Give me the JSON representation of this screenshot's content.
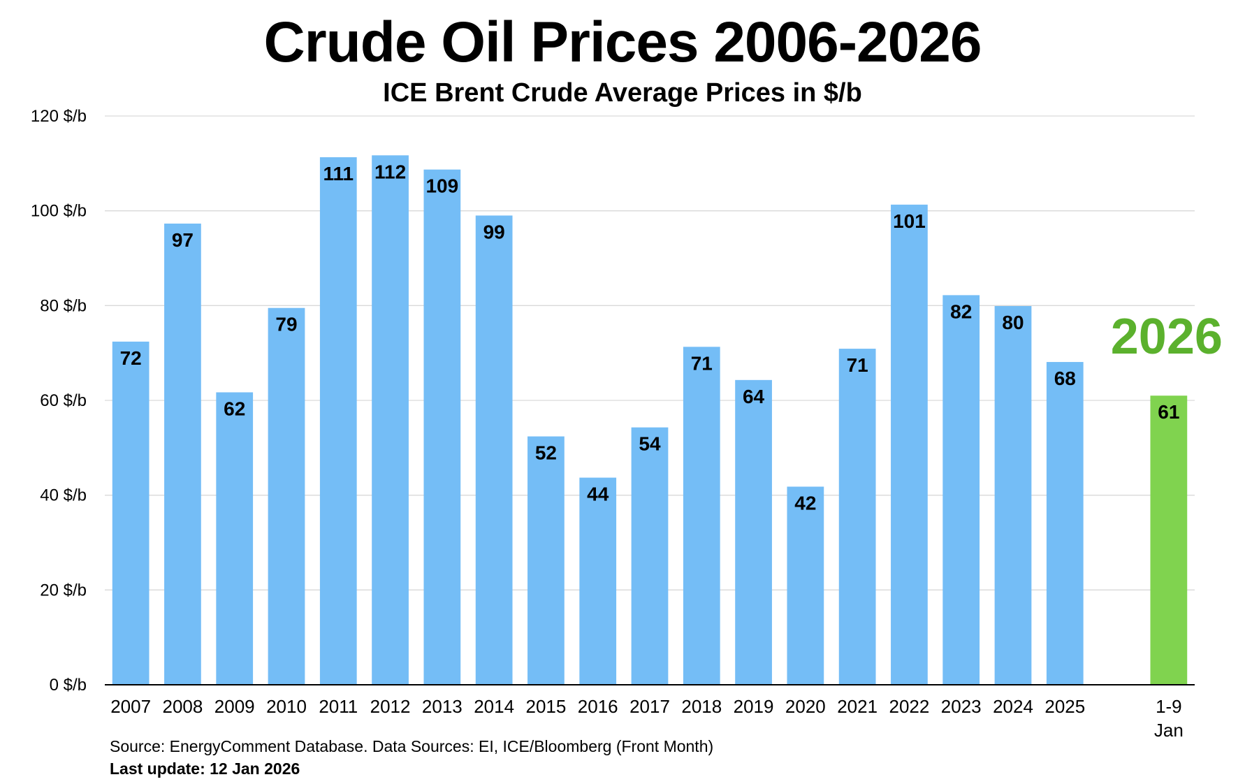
{
  "colors": {
    "bar": "#74BDF6",
    "highlight_bar": "#80D34F",
    "highlight_text": "#5BB12D",
    "grid": "#d9d9d9",
    "axis": "#000000"
  },
  "footer": {
    "source": "Source: EnergyComment Database. Data Sources: EI, ICE/Bloomberg (Front Month)",
    "update": "Last update: 12 Jan 2026"
  },
  "chart_data": {
    "type": "bar",
    "title": "Crude Oil Prices 2006-2026",
    "subtitle": "ICE Brent Crude Average Prices in $/b",
    "xlabel": "",
    "ylabel": "",
    "ylim": [
      0,
      120
    ],
    "yticks": [
      "0 $/b",
      "20 $/b",
      "40 $/b",
      "60 $/b",
      "80 $/b",
      "100 $/b",
      "120 $/b"
    ],
    "ytick_values": [
      0,
      20,
      40,
      60,
      80,
      100,
      120
    ],
    "grid": true,
    "categories": [
      "2007",
      "2008",
      "2009",
      "2010",
      "2011",
      "2012",
      "2013",
      "2014",
      "2015",
      "2016",
      "2017",
      "2018",
      "2019",
      "2020",
      "2021",
      "2022",
      "2023",
      "2024",
      "2025",
      "",
      "1-9\nJan"
    ],
    "values": [
      72.4,
      97.3,
      61.7,
      79.5,
      111.3,
      111.7,
      108.7,
      99.0,
      52.4,
      43.7,
      54.3,
      71.3,
      64.3,
      41.8,
      70.9,
      101.3,
      82.2,
      79.9,
      68.1,
      null,
      61.0
    ],
    "data_labels": [
      "72",
      "97",
      "62",
      "79",
      "111",
      "112",
      "109",
      "99",
      "52",
      "44",
      "54",
      "71",
      "64",
      "42",
      "71",
      "101",
      "82",
      "80",
      "68",
      "",
      "61"
    ],
    "highlight_index": 20,
    "annotations": [
      {
        "text": "2026",
        "near_category_index": 20,
        "color": "#5BB12D"
      }
    ]
  }
}
